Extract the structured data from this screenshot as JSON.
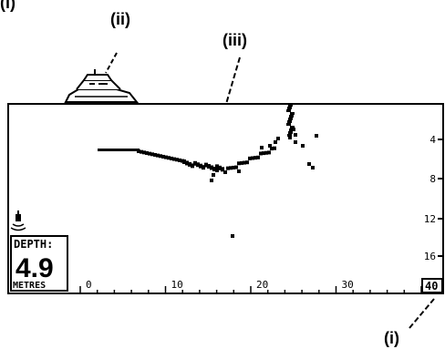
{
  "labels": {
    "top_left": "(i)",
    "boat": "(ii)",
    "seabed": "(iii)",
    "range": "(i)"
  },
  "display": {
    "depth_label": "DEPTH:",
    "depth_value": "4.9",
    "depth_unit": "METRES",
    "range_box": "40",
    "x_ticks": [
      "0",
      "10",
      "20",
      "30"
    ],
    "y_ticks": [
      "4",
      "8",
      "12",
      "16"
    ],
    "transducer_icon": "transducer-icon",
    "boat_icon": "motor-yacht-icon"
  },
  "colors": {
    "ink": "#000000",
    "paper": "#ffffff"
  }
}
